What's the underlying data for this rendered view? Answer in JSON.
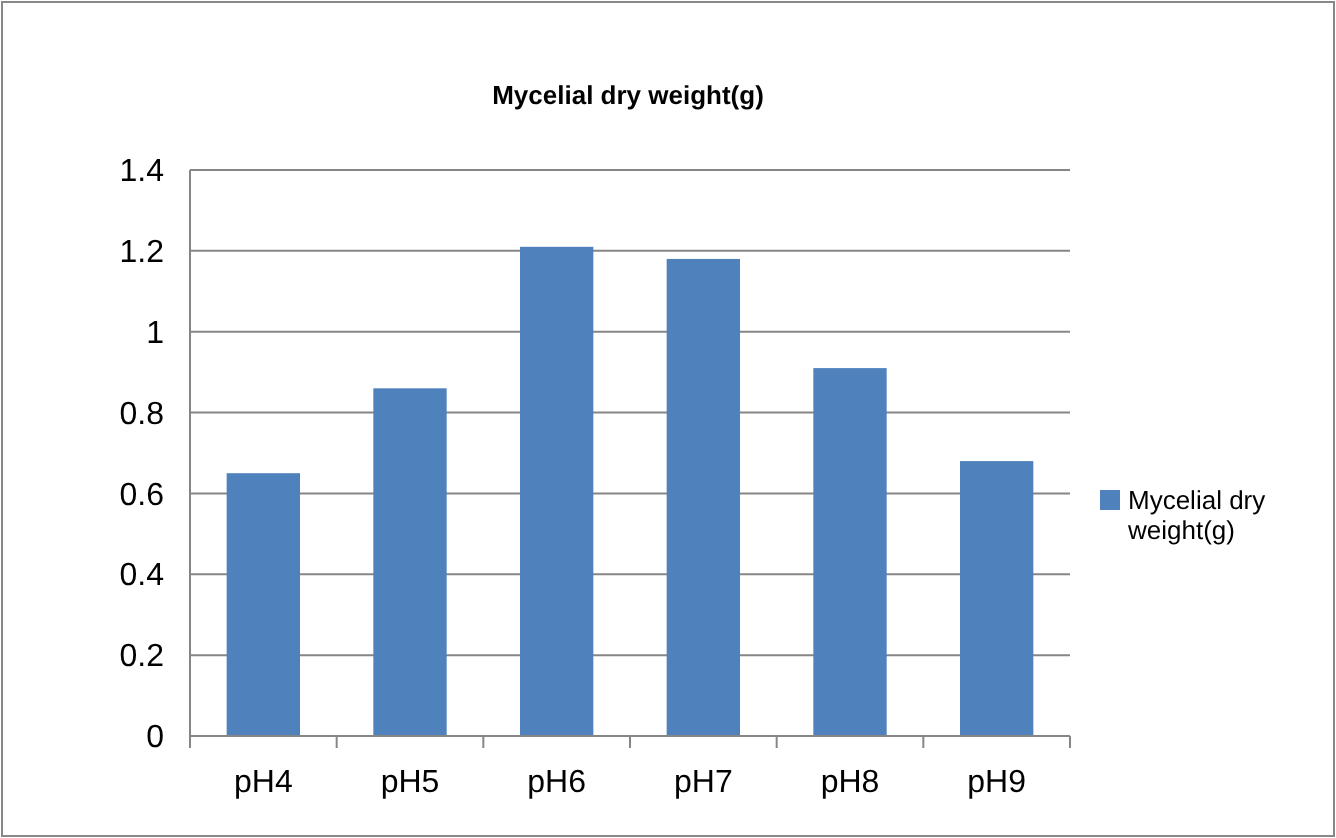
{
  "chart_data": {
    "type": "bar",
    "title": "Mycelial dry weight(g)",
    "categories": [
      "pH4",
      "pH5",
      "pH6",
      "pH7",
      "pH8",
      "pH9"
    ],
    "series": [
      {
        "name": "Mycelial dry weight(g)",
        "color": "#4f81bd",
        "values": [
          0.65,
          0.86,
          1.21,
          1.18,
          0.91,
          0.68
        ]
      }
    ],
    "ylim": [
      0,
      1.4
    ],
    "yticks": [
      0,
      0.2,
      0.4,
      0.6,
      0.8,
      1,
      1.2,
      1.4
    ],
    "grid": "y",
    "legend": "right"
  }
}
